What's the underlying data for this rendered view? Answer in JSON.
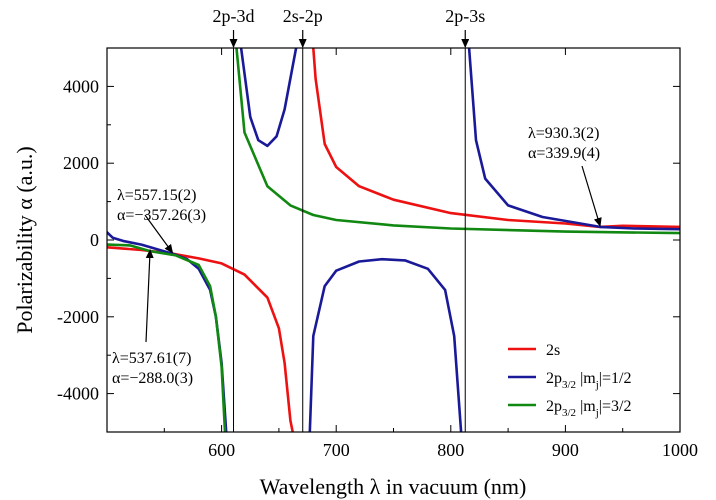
{
  "chart_data": {
    "type": "line",
    "title": "",
    "xlabel": "Wavelength λ in vacuum (nm)",
    "ylabel": "Polarizability α (a.u.)",
    "xlim": [
      500,
      1000
    ],
    "ylim": [
      -5000,
      5000
    ],
    "x_ticks": [
      600,
      700,
      800,
      900,
      1000
    ],
    "x_tick_labels": [
      "600",
      "700",
      "800",
      "900",
      "1000"
    ],
    "y_ticks": [
      -4000,
      -2000,
      0,
      2000,
      4000
    ],
    "y_tick_labels": [
      "-4000",
      "-2000",
      "0",
      "2000",
      "4000"
    ],
    "grid": false,
    "legend_position": "bottom-right",
    "resonances": [
      {
        "label": "2p-3d",
        "x": 610.4
      },
      {
        "label": "2s-2p",
        "x": 670.8
      },
      {
        "label": "2p-3s",
        "x": 812.6
      }
    ],
    "series": [
      {
        "name": "2s",
        "color": "#ee1111",
        "segments": [
          [
            [
              500,
              -190
            ],
            [
              530,
              -260
            ],
            [
              557.15,
              -357.3
            ],
            [
              580,
              -480
            ],
            [
              600,
              -610
            ],
            [
              620,
              -900
            ],
            [
              640,
              -1500
            ],
            [
              650,
              -2300
            ],
            [
              655,
              -3200
            ],
            [
              660,
              -4700
            ],
            [
              662,
              -5000
            ]
          ],
          [
            [
              680,
              5000
            ],
            [
              682,
              4200
            ],
            [
              690,
              2500
            ],
            [
              700,
              1900
            ],
            [
              720,
              1400
            ],
            [
              750,
              1050
            ],
            [
              800,
              700
            ],
            [
              850,
              520
            ],
            [
              900,
              430
            ],
            [
              930.3,
              339.9
            ],
            [
              950,
              370
            ],
            [
              1000,
              340
            ]
          ]
        ]
      },
      {
        "name": "2p3/2 |mj|=1/2",
        "color": "#1a1a99",
        "segments": [
          [
            [
              500,
              200
            ],
            [
              505,
              60
            ],
            [
              515,
              -30
            ],
            [
              530,
              -120
            ],
            [
              557.15,
              -357.3
            ],
            [
              570,
              -500
            ],
            [
              580,
              -750
            ],
            [
              590,
              -1300
            ],
            [
              595,
              -2000
            ],
            [
              600,
              -3200
            ],
            [
              604,
              -5000
            ]
          ],
          [
            [
              617,
              5000
            ],
            [
              625,
              3200
            ],
            [
              632,
              2600
            ],
            [
              640,
              2450
            ],
            [
              648,
              2700
            ],
            [
              655,
              3400
            ],
            [
              665,
              5000
            ]
          ],
          [
            [
              677,
              -5000
            ],
            [
              680,
              -2500
            ],
            [
              690,
              -1200
            ],
            [
              700,
              -800
            ],
            [
              720,
              -560
            ],
            [
              740,
              -500
            ],
            [
              760,
              -530
            ],
            [
              780,
              -750
            ],
            [
              795,
              -1300
            ],
            [
              803,
              -2500
            ],
            [
              809,
              -5000
            ]
          ],
          [
            [
              816,
              5000
            ],
            [
              822,
              2600
            ],
            [
              830,
              1600
            ],
            [
              850,
              900
            ],
            [
              880,
              600
            ],
            [
              930.3,
              339.9
            ],
            [
              960,
              300
            ],
            [
              1000,
              280
            ]
          ]
        ]
      },
      {
        "name": "2p3/2 |mj|=3/2",
        "color": "#118811",
        "segments": [
          [
            [
              500,
              -120
            ],
            [
              520,
              -140
            ],
            [
              537.61,
              -288.0
            ],
            [
              560,
              -400
            ],
            [
              580,
              -650
            ],
            [
              590,
              -1200
            ],
            [
              595,
              -2000
            ],
            [
              600,
              -3300
            ],
            [
              603,
              -5000
            ]
          ],
          [
            [
              613,
              5000
            ],
            [
              620,
              2800
            ],
            [
              640,
              1400
            ],
            [
              660,
              900
            ],
            [
              680,
              650
            ],
            [
              700,
              520
            ],
            [
              750,
              380
            ],
            [
              800,
              300
            ],
            [
              900,
              220
            ],
            [
              1000,
              180
            ]
          ]
        ]
      }
    ],
    "annotations": [
      {
        "lines": [
          "λ=557.15(2)",
          "α=−357.26(3)"
        ],
        "point": [
          557.15,
          -357.26
        ]
      },
      {
        "lines": [
          "λ=537.61(7)",
          "α=−288.0(3)"
        ],
        "point": [
          537.61,
          -288.0
        ]
      },
      {
        "lines": [
          "λ=930.3(2)",
          "α=339.9(4)"
        ],
        "point": [
          930.3,
          339.9
        ]
      }
    ],
    "legend": [
      {
        "main": "2s",
        "sub": "",
        "tail": "",
        "color": "#ee1111"
      },
      {
        "main": "2p",
        "sub": "3/2",
        "tail": " |m",
        "sub2": "j",
        "tail2": "|=1/2",
        "color": "#1a1a99"
      },
      {
        "main": "2p",
        "sub": "3/2",
        "tail": " |m",
        "sub2": "j",
        "tail2": "|=3/2",
        "color": "#118811"
      }
    ]
  }
}
